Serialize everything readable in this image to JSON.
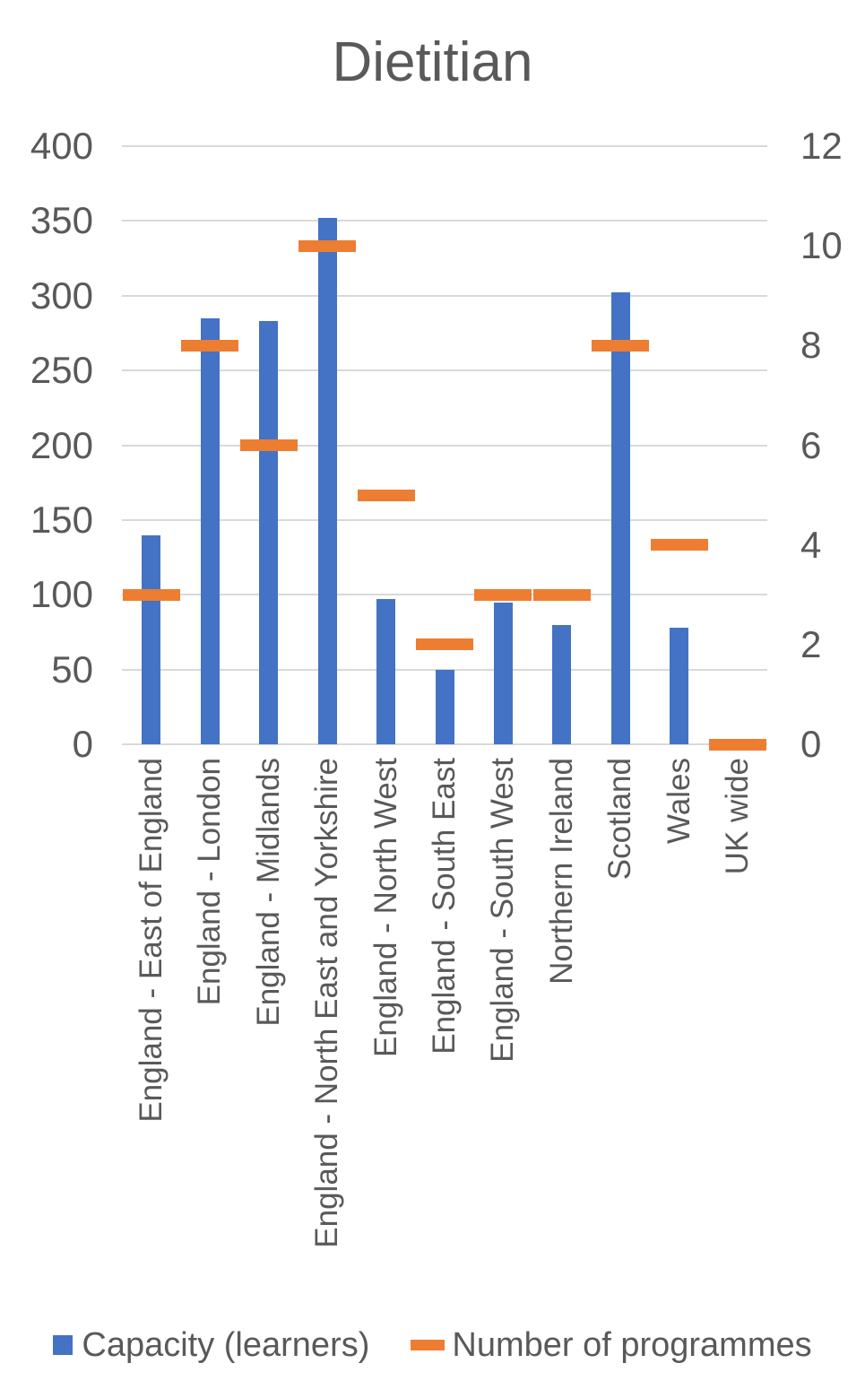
{
  "title": "Dietitian",
  "legend": {
    "items": [
      {
        "label": "Capacity (learners)",
        "marker": "square-icon",
        "color": "#4472C4"
      },
      {
        "label": "Number of programmes",
        "marker": "dash-icon",
        "color": "#ED7D31"
      }
    ]
  },
  "chart_data": {
    "type": "bar",
    "title": "Dietitian",
    "categories": [
      "England - East of England",
      "England - London",
      "England - Midlands",
      "England - North East and Yorkshire",
      "England - North West",
      "England - South East",
      "England - South West",
      "Northern Ireland",
      "Scotland",
      "Wales",
      "UK wide"
    ],
    "series": [
      {
        "name": "Capacity (learners)",
        "type": "bar",
        "axis": "left",
        "color": "#4472C4",
        "values": [
          140,
          285,
          283,
          352,
          97,
          50,
          95,
          80,
          302,
          78,
          0
        ]
      },
      {
        "name": "Number of programmes",
        "type": "dash",
        "axis": "right",
        "color": "#ED7D31",
        "values": [
          3,
          8,
          6,
          10,
          5,
          2,
          3,
          3,
          8,
          4,
          0
        ]
      }
    ],
    "left_axis": {
      "min": 0,
      "max": 400,
      "step": 50,
      "ticks": [
        0,
        50,
        100,
        150,
        200,
        250,
        300,
        350,
        400
      ]
    },
    "right_axis": {
      "min": 0,
      "max": 12,
      "step": 2,
      "ticks": [
        0,
        2,
        4,
        6,
        8,
        10,
        12
      ]
    },
    "grid": true,
    "legend_position": "bottom",
    "colors": {
      "bar": "#4472C4",
      "dash": "#ED7D31",
      "text": "#595959",
      "gridline": "#D9D9D9",
      "background": "#FFFFFF"
    }
  }
}
